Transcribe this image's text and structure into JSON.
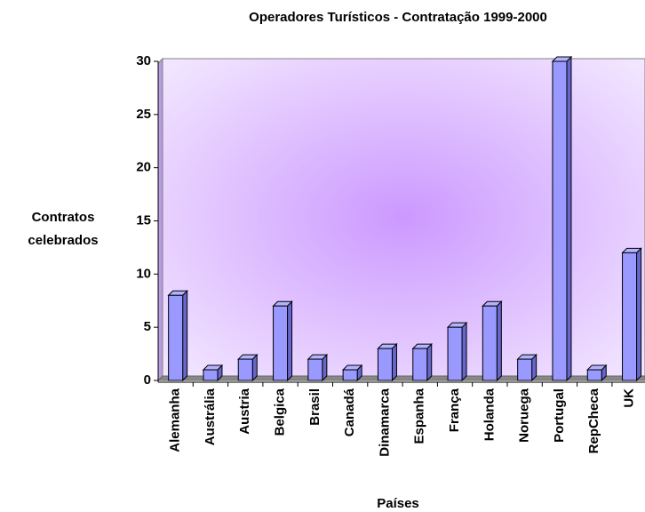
{
  "chart_data": {
    "type": "bar",
    "title": "Operadores Turísticos - Contratação 1999-2000",
    "x_label": "Países",
    "y_label": "Contratos celebrados",
    "categories": [
      "Alemanha",
      "Austrália",
      "Austria",
      "Belgica",
      "Brasil",
      "Canadá",
      "Dinamarca",
      "Espanha",
      "França",
      "Holanda",
      "Noruega",
      "Portugal",
      "RepCheca",
      "UK"
    ],
    "values": [
      8,
      1,
      2,
      7,
      2,
      1,
      3,
      3,
      5,
      7,
      2,
      30,
      1,
      12
    ],
    "color": "#9999ff",
    "ylim": [
      0,
      30
    ],
    "yticks": [
      0,
      5,
      10,
      15,
      20,
      25,
      30
    ]
  }
}
